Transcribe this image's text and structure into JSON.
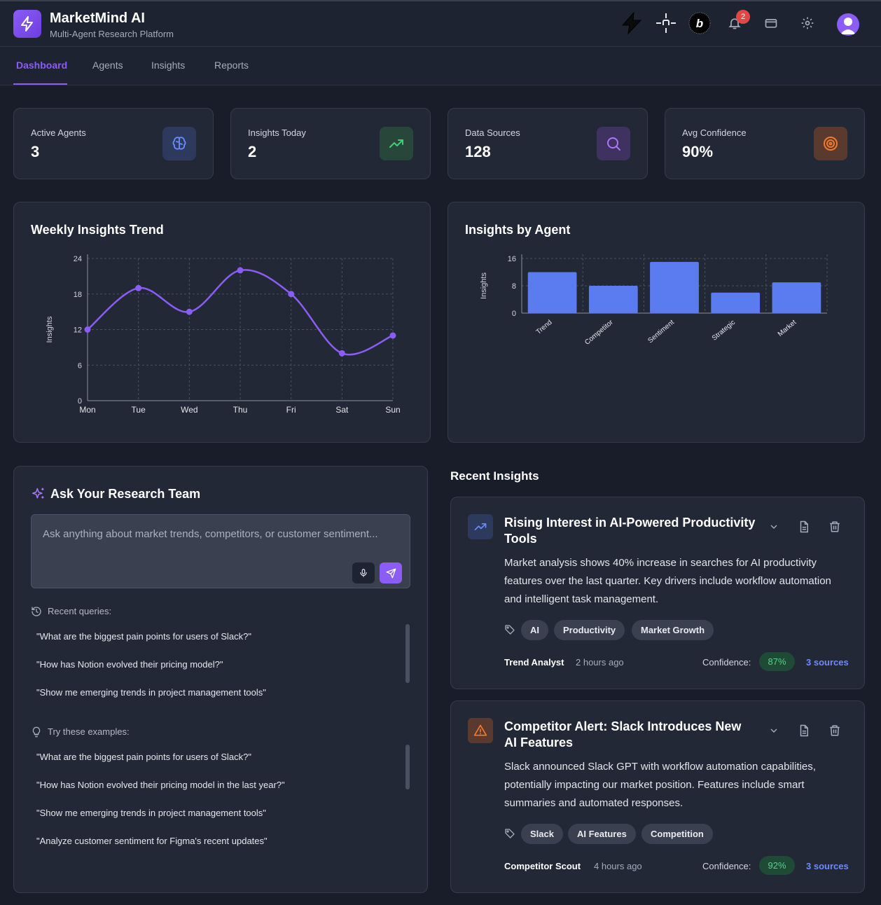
{
  "app": {
    "title": "MarketMind AI",
    "subtitle": "Multi-Agent Research Platform",
    "notification_count": "2"
  },
  "nav": {
    "tabs": [
      "Dashboard",
      "Agents",
      "Insights",
      "Reports"
    ],
    "active": "Dashboard"
  },
  "stats": [
    {
      "label": "Active Agents",
      "value": "3",
      "icon": "brain-icon",
      "color": "#6b8cff"
    },
    {
      "label": "Insights Today",
      "value": "2",
      "icon": "trending-up-icon",
      "color": "#3ecf72"
    },
    {
      "label": "Data Sources",
      "value": "128",
      "icon": "search-icon",
      "color": "#a978ff"
    },
    {
      "label": "Avg Confidence",
      "value": "90%",
      "icon": "target-icon",
      "color": "#f07a2e"
    }
  ],
  "weekly_chart": {
    "title": "Weekly Insights Trend",
    "chart_data": {
      "type": "line",
      "title": "Weekly Insights Trend",
      "ylabel": "Insights",
      "categories": [
        "Mon",
        "Tue",
        "Wed",
        "Thu",
        "Fri",
        "Sat",
        "Sun"
      ],
      "values": [
        12,
        19,
        15,
        22,
        18,
        8,
        11
      ],
      "yticks": [
        0,
        6,
        12,
        18,
        24
      ],
      "ylim": [
        0,
        24
      ],
      "grid": true,
      "color": "#8b5cf6"
    }
  },
  "agent_chart": {
    "title": "Insights by Agent",
    "chart_data": {
      "type": "bar",
      "title": "Insights by Agent",
      "ylabel": "Insights",
      "categories": [
        "Trend",
        "Competitor",
        "Sentiment",
        "Strategic",
        "Market"
      ],
      "values": [
        12,
        8,
        15,
        6,
        9
      ],
      "yticks": [
        0,
        8,
        16
      ],
      "ylim": [
        0,
        16
      ],
      "grid": true,
      "color": "#5b7cf0"
    }
  },
  "ask": {
    "title": "Ask Your Research Team",
    "placeholder": "Ask anything about market trends, competitors, or customer sentiment...",
    "recent_label": "Recent queries:",
    "recent": [
      "\"What are the biggest pain points for users of Slack?\"",
      "\"How has Notion evolved their pricing model?\"",
      "\"Show me emerging trends in project management tools\""
    ],
    "examples_label": "Try these examples:",
    "examples": [
      "\"What are the biggest pain points for users of Slack?\"",
      "\"How has Notion evolved their pricing model in the last year?\"",
      "\"Show me emerging trends in project management tools\"",
      "\"Analyze customer sentiment for Figma's recent updates\""
    ]
  },
  "recent_insights": {
    "title": "Recent Insights",
    "items": [
      {
        "title": "Rising Interest in AI-Powered Productivity Tools",
        "body": "Market analysis shows 40% increase in searches for AI productivity features over the last quarter. Key drivers include workflow automation and intelligent task management.",
        "tags": [
          "AI",
          "Productivity",
          "Market Growth"
        ],
        "author": "Trend Analyst",
        "time": "2 hours ago",
        "confidence_label": "Confidence:",
        "confidence": "87%",
        "sources": "3 sources",
        "icon": "trending-up-icon"
      },
      {
        "title": "Competitor Alert: Slack Introduces New AI Features",
        "body": "Slack announced Slack GPT with workflow automation capabilities, potentially impacting our market position. Features include smart summaries and automated responses.",
        "tags": [
          "Slack",
          "AI Features",
          "Competition"
        ],
        "author": "Competitor Scout",
        "time": "4 hours ago",
        "confidence_label": "Confidence:",
        "confidence": "92%",
        "sources": "3 sources",
        "icon": "alert-triangle-icon"
      }
    ]
  }
}
